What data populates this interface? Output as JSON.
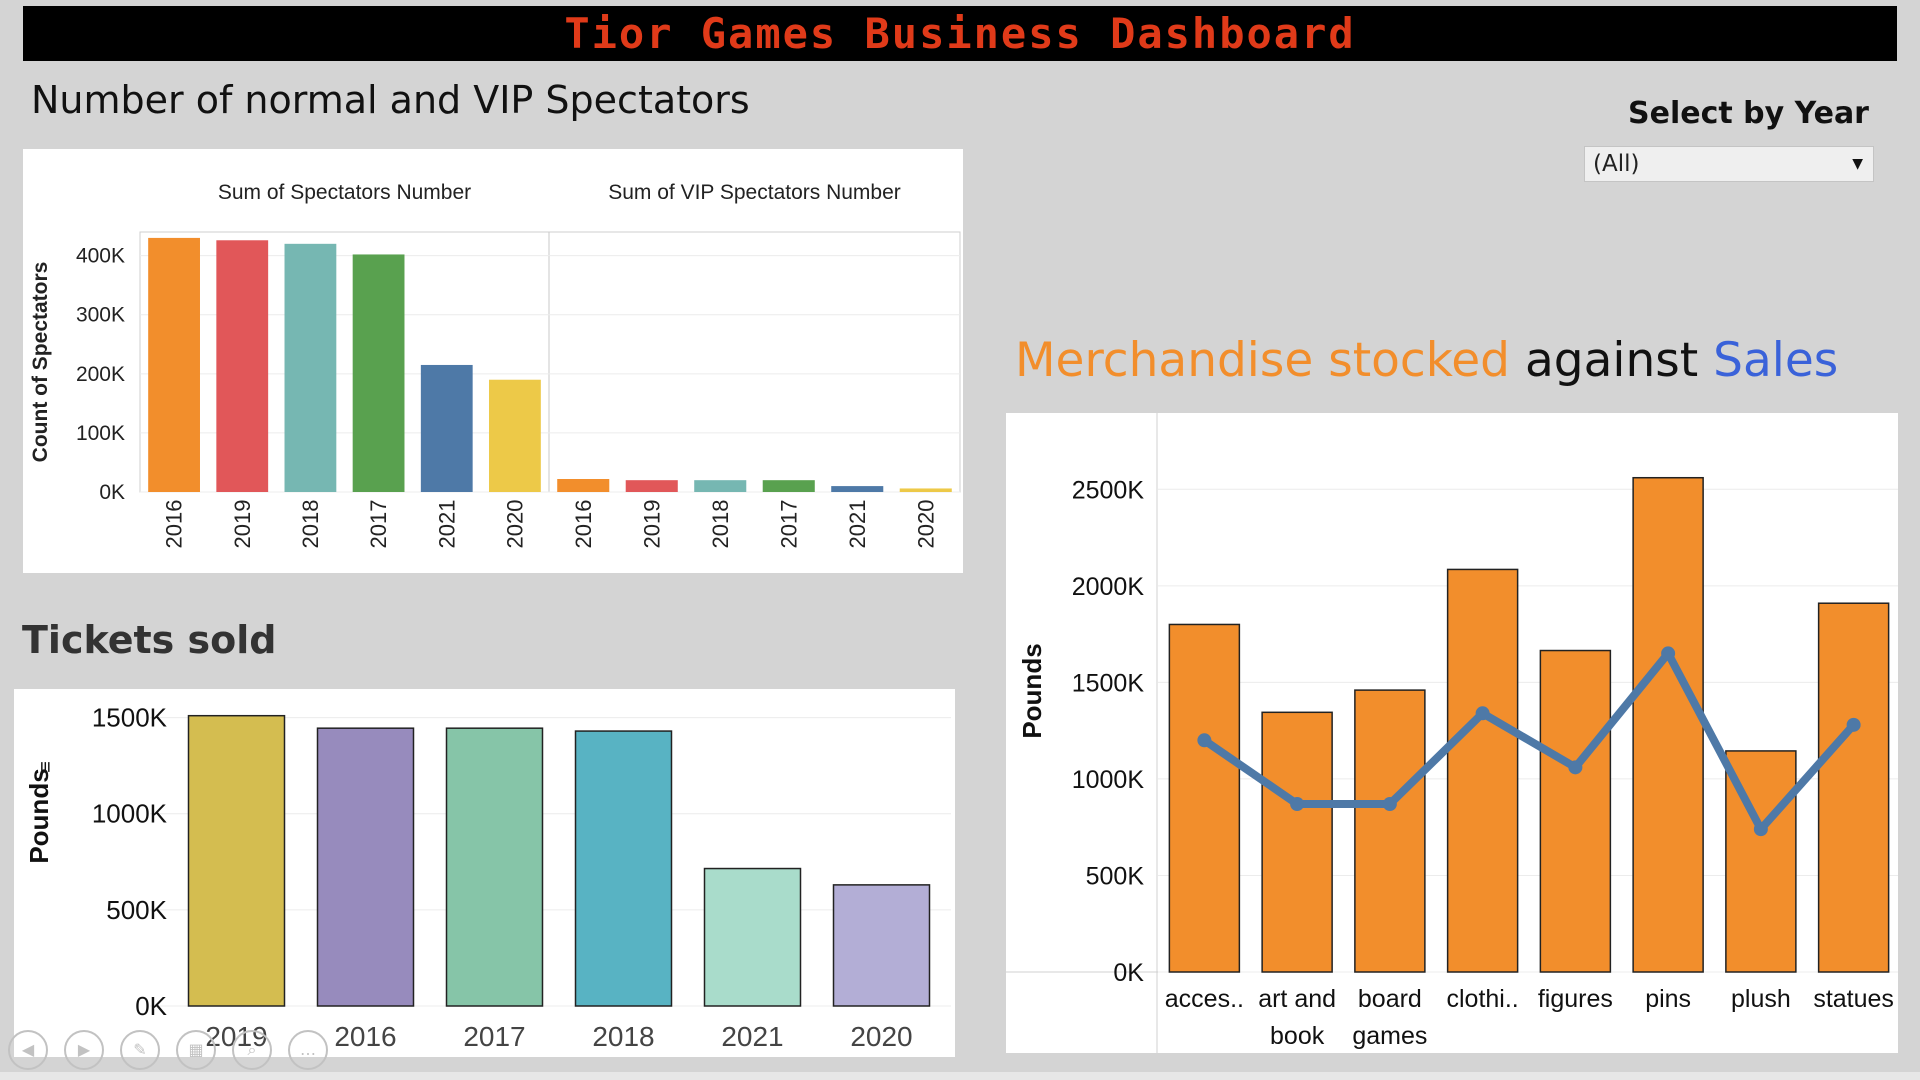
{
  "dashboard_title": "Tior Games Business Dashboard",
  "spectators_title": "Number of normal and VIP Spectators",
  "tickets_title": "Tickets sold",
  "merch_title": {
    "part1": "Merchandise stocked",
    "part2": "against",
    "part3": "Sales"
  },
  "filter": {
    "label": "Select by Year",
    "value": "(All)"
  },
  "colors": {
    "title_red": "#e03a19",
    "merch_orange": "#f28e2c",
    "sales_line": "#4e79a7",
    "sales_title_blue": "#3a62d9",
    "year_colors": {
      "2016": "#f28e2c",
      "2019": "#e15759",
      "2018": "#76b7b2",
      "2017": "#59a14f",
      "2021": "#4e79a7",
      "2020": "#edc948"
    },
    "ticket_colors": [
      "#d4bd50",
      "#978bbd",
      "#86c5a8",
      "#58b3c3",
      "#a9dccb",
      "#b3aed6"
    ]
  },
  "nav_icons": [
    "back-icon",
    "forward-icon",
    "edit-icon",
    "layout-icon",
    "zoom-icon",
    "more-icon"
  ],
  "chart_data": [
    {
      "type": "bar",
      "title": "Number of normal and VIP Spectators",
      "ylabel": "Count of Spectators",
      "ylim": [
        0,
        440000
      ],
      "yticks": [
        0,
        100000,
        200000,
        300000,
        400000
      ],
      "ytick_labels": [
        "0K",
        "100K",
        "200K",
        "300K",
        "400K"
      ],
      "categories": [
        "2016",
        "2019",
        "2018",
        "2017",
        "2021",
        "2020"
      ],
      "grid": true,
      "panels": [
        {
          "name": "Sum of Spectators Number",
          "values": [
            430000,
            426000,
            420000,
            402000,
            215000,
            190000
          ]
        },
        {
          "name": "Sum of VIP Spectators Number",
          "values": [
            22000,
            20000,
            20000,
            20000,
            10000,
            6000
          ]
        }
      ]
    },
    {
      "type": "bar",
      "title": "Tickets sold",
      "ylabel": "Pounds",
      "ylim": [
        0,
        1550000
      ],
      "yticks": [
        0,
        500000,
        1000000,
        1500000
      ],
      "ytick_labels": [
        "0K",
        "500K",
        "1000K",
        "1500K"
      ],
      "categories": [
        "2019",
        "2016",
        "2017",
        "2018",
        "2021",
        "2020"
      ],
      "values": [
        1510000,
        1445000,
        1445000,
        1430000,
        715000,
        630000
      ],
      "grid": true
    },
    {
      "type": "bar",
      "title": "Merchandise stocked against Sales",
      "ylabel": "Pounds",
      "ylim": [
        0,
        2600000
      ],
      "yticks": [
        0,
        500000,
        1000000,
        1500000,
        2000000,
        2500000
      ],
      "ytick_labels": [
        "0K",
        "500K",
        "1000K",
        "1500K",
        "2000K",
        "2500K"
      ],
      "categories": [
        "acces..",
        "art and book",
        "board games",
        "clothi..",
        "figures",
        "pins",
        "plush",
        "statues"
      ],
      "series": [
        {
          "type": "bar",
          "values": [
            1800000,
            1345000,
            1460000,
            2085000,
            1665000,
            2560000,
            1145000,
            1910000
          ]
        },
        {
          "type": "line",
          "values": [
            1200000,
            870000,
            870000,
            1340000,
            1060000,
            1650000,
            740000,
            1280000
          ]
        }
      ],
      "grid": true
    }
  ]
}
